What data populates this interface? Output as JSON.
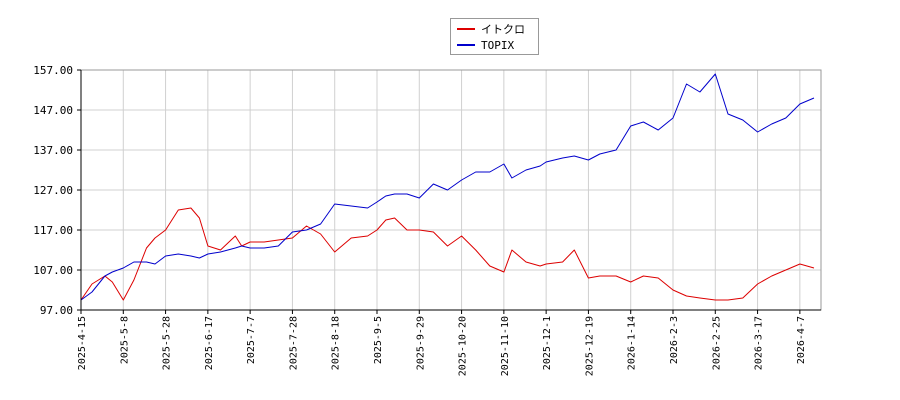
{
  "chart_data": {
    "type": "line",
    "title": "",
    "xlabel": "",
    "ylabel": "",
    "ylim": [
      97.0,
      157.0
    ],
    "yticks": [
      "97.00",
      "107.00",
      "117.00",
      "127.00",
      "137.00",
      "147.00",
      "157.00"
    ],
    "xticks": [
      "2025-4-15",
      "2025-5-8",
      "2025-5-28",
      "2025-6-17",
      "2025-7-7",
      "2025-7-28",
      "2025-8-18",
      "2025-9-5",
      "2025-9-29",
      "2025-10-20",
      "2025-11-10",
      "2025-12-1",
      "2025-12-19",
      "2026-1-14",
      "2026-2-3",
      "2026-2-25",
      "2026-3-17",
      "2026-4-7"
    ],
    "grid": true,
    "legend_position": "top-center",
    "series": [
      {
        "name": "イトクロ",
        "color": "#dd0000",
        "points": [
          [
            "2025-4-15",
            99.5
          ],
          [
            "2025-4-21",
            103.5
          ],
          [
            "2025-4-28",
            105.5
          ],
          [
            "2025-5-2",
            104.0
          ],
          [
            "2025-5-8",
            99.5
          ],
          [
            "2025-5-13",
            104.5
          ],
          [
            "2025-5-19",
            112.5
          ],
          [
            "2025-5-23",
            115.0
          ],
          [
            "2025-5-28",
            117.0
          ],
          [
            "2025-6-3",
            122.0
          ],
          [
            "2025-6-9",
            122.5
          ],
          [
            "2025-6-13",
            120.0
          ],
          [
            "2025-6-17",
            113.0
          ],
          [
            "2025-6-23",
            112.0
          ],
          [
            "2025-6-30",
            115.5
          ],
          [
            "2025-7-3",
            113.0
          ],
          [
            "2025-7-7",
            114.0
          ],
          [
            "2025-7-14",
            114.0
          ],
          [
            "2025-7-21",
            114.5
          ],
          [
            "2025-7-28",
            115.0
          ],
          [
            "2025-8-4",
            118.0
          ],
          [
            "2025-8-11",
            116.0
          ],
          [
            "2025-8-18",
            111.5
          ],
          [
            "2025-8-25",
            115.0
          ],
          [
            "2025-9-1",
            115.5
          ],
          [
            "2025-9-5",
            117.0
          ],
          [
            "2025-9-10",
            119.5
          ],
          [
            "2025-9-15",
            120.0
          ],
          [
            "2025-9-22",
            117.0
          ],
          [
            "2025-9-29",
            117.0
          ],
          [
            "2025-10-6",
            116.5
          ],
          [
            "2025-10-13",
            113.0
          ],
          [
            "2025-10-20",
            115.5
          ],
          [
            "2025-10-27",
            112.0
          ],
          [
            "2025-11-3",
            108.0
          ],
          [
            "2025-11-10",
            106.5
          ],
          [
            "2025-11-14",
            112.0
          ],
          [
            "2025-11-21",
            109.0
          ],
          [
            "2025-11-28",
            108.0
          ],
          [
            "2025-12-1",
            108.5
          ],
          [
            "2025-12-8",
            109.0
          ],
          [
            "2025-12-13",
            112.0
          ],
          [
            "2025-12-19",
            105.0
          ],
          [
            "2025-12-26",
            105.5
          ],
          [
            "2026-1-5",
            105.5
          ],
          [
            "2026-1-14",
            104.0
          ],
          [
            "2026-1-20",
            105.5
          ],
          [
            "2026-1-27",
            105.0
          ],
          [
            "2026-2-3",
            102.0
          ],
          [
            "2026-2-10",
            100.5
          ],
          [
            "2026-2-17",
            100.0
          ],
          [
            "2026-2-25",
            99.5
          ],
          [
            "2026-3-3",
            99.5
          ],
          [
            "2026-3-10",
            100.0
          ],
          [
            "2026-3-17",
            103.5
          ],
          [
            "2026-3-24",
            105.5
          ],
          [
            "2026-3-31",
            107.0
          ],
          [
            "2026-4-7",
            108.5
          ],
          [
            "2026-4-14",
            107.5
          ]
        ]
      },
      {
        "name": "TOPIX",
        "color": "#0000cc",
        "points": [
          [
            "2025-4-15",
            99.5
          ],
          [
            "2025-4-21",
            101.5
          ],
          [
            "2025-4-28",
            105.5
          ],
          [
            "2025-5-2",
            106.5
          ],
          [
            "2025-5-8",
            107.5
          ],
          [
            "2025-5-13",
            109.0
          ],
          [
            "2025-5-19",
            109.0
          ],
          [
            "2025-5-23",
            108.5
          ],
          [
            "2025-5-28",
            110.5
          ],
          [
            "2025-6-3",
            111.0
          ],
          [
            "2025-6-9",
            110.5
          ],
          [
            "2025-6-13",
            110.0
          ],
          [
            "2025-6-17",
            111.0
          ],
          [
            "2025-6-23",
            111.5
          ],
          [
            "2025-6-30",
            112.5
          ],
          [
            "2025-7-3",
            113.0
          ],
          [
            "2025-7-7",
            112.5
          ],
          [
            "2025-7-14",
            112.5
          ],
          [
            "2025-7-21",
            113.0
          ],
          [
            "2025-7-28",
            116.5
          ],
          [
            "2025-8-4",
            117.0
          ],
          [
            "2025-8-11",
            118.5
          ],
          [
            "2025-8-18",
            123.5
          ],
          [
            "2025-8-25",
            123.0
          ],
          [
            "2025-9-1",
            122.5
          ],
          [
            "2025-9-5",
            124.0
          ],
          [
            "2025-9-10",
            125.5
          ],
          [
            "2025-9-15",
            126.0
          ],
          [
            "2025-9-22",
            126.0
          ],
          [
            "2025-9-29",
            125.0
          ],
          [
            "2025-10-6",
            128.5
          ],
          [
            "2025-10-13",
            127.0
          ],
          [
            "2025-10-20",
            129.5
          ],
          [
            "2025-10-27",
            131.5
          ],
          [
            "2025-11-3",
            131.5
          ],
          [
            "2025-11-10",
            133.5
          ],
          [
            "2025-11-14",
            130.0
          ],
          [
            "2025-11-21",
            132.0
          ],
          [
            "2025-11-28",
            133.0
          ],
          [
            "2025-12-1",
            134.0
          ],
          [
            "2025-12-8",
            135.0
          ],
          [
            "2025-12-13",
            135.5
          ],
          [
            "2025-12-19",
            134.5
          ],
          [
            "2025-12-26",
            136.0
          ],
          [
            "2026-1-5",
            137.0
          ],
          [
            "2026-1-14",
            143.0
          ],
          [
            "2026-1-20",
            144.0
          ],
          [
            "2026-1-27",
            142.0
          ],
          [
            "2026-2-3",
            145.0
          ],
          [
            "2026-2-10",
            153.5
          ],
          [
            "2026-2-17",
            151.5
          ],
          [
            "2026-2-25",
            156.0
          ],
          [
            "2026-3-3",
            146.0
          ],
          [
            "2026-3-10",
            144.5
          ],
          [
            "2026-3-17",
            141.5
          ],
          [
            "2026-3-24",
            143.5
          ],
          [
            "2026-3-31",
            145.0
          ],
          [
            "2026-4-7",
            148.5
          ],
          [
            "2026-4-14",
            150.0
          ]
        ]
      }
    ]
  }
}
